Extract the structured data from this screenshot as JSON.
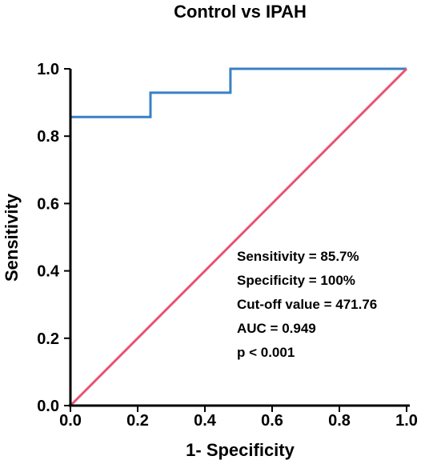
{
  "chart_data": {
    "type": "line",
    "title": "Control vs IPAH",
    "xlabel": "1- Specificity",
    "ylabel": "Sensitivity",
    "xlim": [
      0.0,
      1.0
    ],
    "ylim": [
      0.0,
      1.0
    ],
    "x_ticks": [
      "0.0",
      "0.2",
      "0.4",
      "0.6",
      "0.8",
      "1.0"
    ],
    "y_ticks": [
      "0.0",
      "0.2",
      "0.4",
      "0.6",
      "0.8",
      "1.0"
    ],
    "grid": false,
    "series": [
      {
        "color": "#3a80c4",
        "x": [
          0.0,
          0.238,
          0.238,
          0.476,
          0.476,
          1.0
        ],
        "y": [
          0.857,
          0.857,
          0.929,
          0.929,
          1.0,
          1.0
        ]
      },
      {
        "color": "#e95373",
        "x": [
          0.0,
          1.0
        ],
        "y": [
          0.0,
          1.0
        ]
      }
    ],
    "annotations": [
      "Sensitivity = 85.7%",
      "Specificity = 100%",
      "Cut-off value = 471.76",
      "AUC = 0.949",
      "p < 0.001"
    ]
  }
}
